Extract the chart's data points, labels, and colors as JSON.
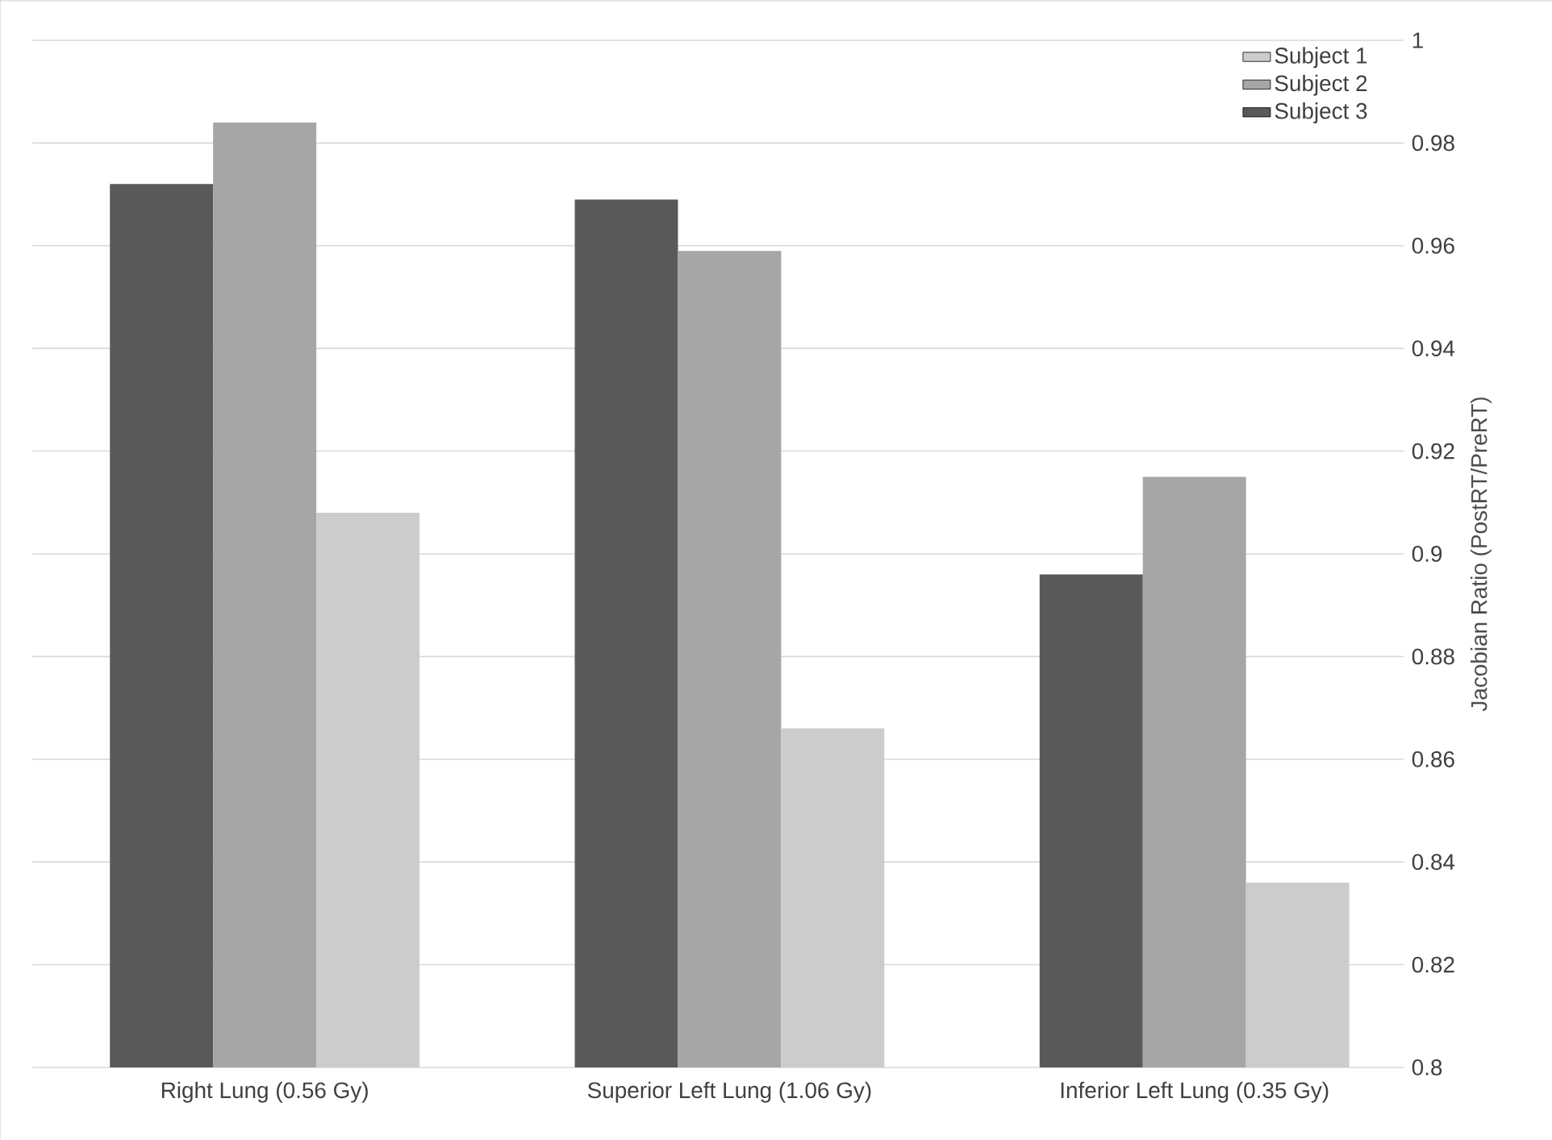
{
  "chart_data": {
    "type": "bar",
    "ylabel": "Jacobian Ratio (PostRT/PreRT)",
    "categories": [
      "Right Lung (0.56 Gy)",
      "Superior Left Lung (1.06 Gy)",
      "Inferior Left Lung (0.35 Gy)"
    ],
    "series": [
      {
        "name": "Subject 3",
        "color": "#595959",
        "values": [
          0.972,
          0.969,
          0.896
        ]
      },
      {
        "name": "Subject 2",
        "color": "#a6a6a6",
        "values": [
          0.984,
          0.959,
          0.915
        ]
      },
      {
        "name": "Subject 1",
        "color": "#cccccc",
        "values": [
          0.908,
          0.866,
          0.836
        ]
      }
    ],
    "ylim": [
      0.8,
      1
    ],
    "yticks": [
      0.8,
      0.82,
      0.84,
      0.86,
      0.88,
      0.9,
      0.92,
      0.94,
      0.96,
      0.98,
      1
    ],
    "grid": "y",
    "legend": "top right"
  }
}
